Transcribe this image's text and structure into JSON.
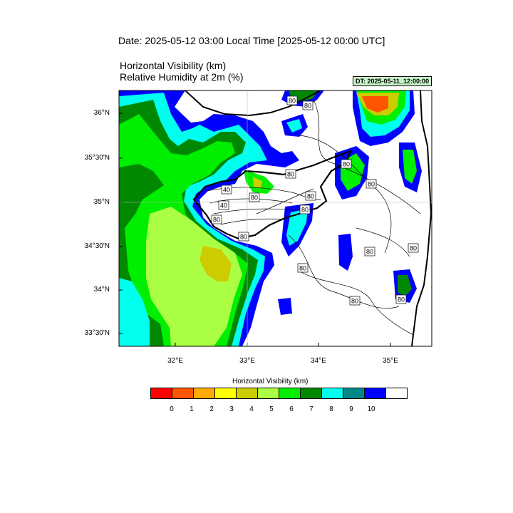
{
  "title": {
    "date": "Date: 2025-05-12  03:00 Local Time [2025-05-12  00:00 UTC]",
    "line1": "Horizontal Visibility   (km)",
    "line2": "Relative Humidity at 2m   (%)"
  },
  "dt_badge": "DT: 2025-05-11_12:00:00",
  "axes": {
    "lat_labels": [
      "36°N",
      "35°30'N",
      "35°N",
      "34°30'N",
      "34°N",
      "33°30'N"
    ],
    "lon_labels": [
      "32°E",
      "33°E",
      "34°E",
      "35°E"
    ]
  },
  "contour_labels": [
    "80",
    "80",
    "80",
    "80",
    "40",
    "80",
    "80",
    "80",
    "80",
    "40",
    "80",
    "80",
    "80",
    "80",
    "80",
    "80",
    "80"
  ],
  "legend": {
    "title": "Horizontal Visibility  (km)",
    "ticks": [
      "0",
      "1",
      "2",
      "3",
      "4",
      "5",
      "6",
      "7",
      "8",
      "9",
      "10"
    ],
    "colors": [
      "#ff0000",
      "#ff5500",
      "#ffaa00",
      "#ffff00",
      "#cccc00",
      "#aaff44",
      "#00ee00",
      "#008800",
      "#00ffee",
      "#008888",
      "#0000ff",
      "#ffffff"
    ]
  },
  "map_colors": {
    "sea_clear": "#ffffff",
    "vis_9": "#0000ff",
    "vis_8_teal": "#008888",
    "vis_8": "#00ffee",
    "vis_7": "#008800",
    "vis_6": "#00ee00",
    "vis_5": "#aaff44",
    "vis_4": "#cccc00",
    "vis_low": "#ff5500"
  }
}
